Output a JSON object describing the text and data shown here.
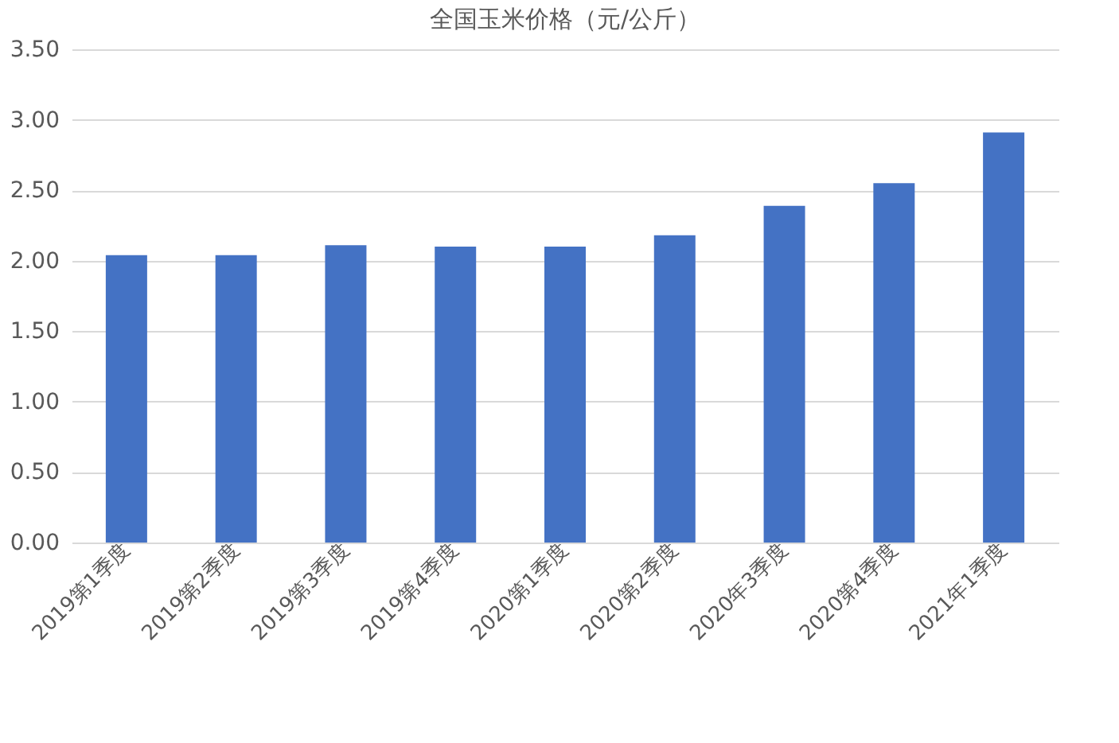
{
  "chart_data": {
    "type": "bar",
    "title": "全国玉米价格（元/公斤）",
    "categories": [
      "2019第1季度",
      "2019第2季度",
      "2019第3季度",
      "2019第4季度",
      "2020第1季度",
      "2020第2季度",
      "2020年3季度",
      "2020第4季度",
      "2021年1季度"
    ],
    "values": [
      2.04,
      2.04,
      2.11,
      2.1,
      2.1,
      2.18,
      2.39,
      2.55,
      2.91
    ],
    "color": "#4472c4",
    "ylim": [
      0,
      3.5
    ],
    "yticks": [
      {
        "value": 0,
        "label": "0.00"
      },
      {
        "value": 0.5,
        "label": "0.50"
      },
      {
        "value": 1,
        "label": "1.00"
      },
      {
        "value": 1.5,
        "label": "1.50"
      },
      {
        "value": 2,
        "label": "2.00"
      },
      {
        "value": 2.5,
        "label": "2.50"
      },
      {
        "value": 3,
        "label": "3.00"
      },
      {
        "value": 3.5,
        "label": "3.50"
      }
    ],
    "grid": "y"
  }
}
